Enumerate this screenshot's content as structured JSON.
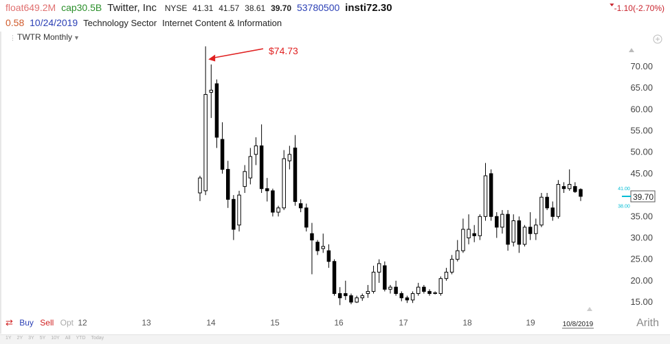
{
  "header": {
    "float": "float649.2M",
    "cap": "cap30.5B",
    "company": "Twitter, Inc",
    "exchange": "NYSE",
    "open": "41.31",
    "high": "41.57",
    "low": "38.61",
    "close": "39.70",
    "volume": "53780500",
    "insti": "insti72.30",
    "eps_value": "0.58",
    "date": "10/24/2019",
    "sector": "Technology Sector",
    "industry": "Internet Content & Information",
    "change": "-1.10(-2.70%)"
  },
  "ticker_label": "TWTR Monthly",
  "footer": {
    "buy_label": "Buy",
    "sell_label": "Sell",
    "opt_label": "Opt",
    "scale_mode": "Arith"
  },
  "scrollbar_labels": [
    "1Y",
    "2Y",
    "3Y",
    "5Y",
    "10Y",
    "All",
    "YTD",
    "Today"
  ],
  "colors": {
    "up_fill": "#ffffff",
    "down_fill": "#000000",
    "wick": "#000000",
    "annotation": "#e02020",
    "current_price_marker": "#00bcd4",
    "axis_text": "#444444"
  },
  "chart_data": {
    "type": "candlestick",
    "title": "",
    "xlabel": "",
    "ylabel": "",
    "ylim": [
      13,
      76
    ],
    "y_ticks": [
      15,
      20,
      25,
      30,
      35,
      40,
      45,
      50,
      55,
      60,
      65,
      70
    ],
    "y_tick_labels": [
      "15.00",
      "20.00",
      "25.00",
      "30.00",
      "35.00",
      "40.00",
      "45.00",
      "50.00",
      "55.00",
      "60.00",
      "65.00",
      "70.00"
    ],
    "x_tick_labels": [
      "12",
      "13",
      "14",
      "15",
      "16",
      "17",
      "18",
      "19"
    ],
    "last_date_label": "10/8/2019",
    "current_price_label": "39.70",
    "minor_label_high": "41.00",
    "minor_label_low": "38.00",
    "annotation": {
      "text": "$74.73",
      "value": 74.73
    },
    "candles": [
      {
        "o": 40.5,
        "h": 44.5,
        "l": 38.6,
        "c": 44.0
      },
      {
        "o": 41.0,
        "h": 74.73,
        "l": 40.0,
        "c": 63.5
      },
      {
        "o": 64.0,
        "h": 70.5,
        "l": 58.0,
        "c": 64.5
      },
      {
        "o": 66.0,
        "h": 67.0,
        "l": 51.0,
        "c": 53.5
      },
      {
        "o": 53.0,
        "h": 57.0,
        "l": 45.0,
        "c": 46.0
      },
      {
        "o": 46.0,
        "h": 48.0,
        "l": 37.0,
        "c": 39.0
      },
      {
        "o": 39.0,
        "h": 40.0,
        "l": 29.5,
        "c": 32.0
      },
      {
        "o": 33.0,
        "h": 41.0,
        "l": 31.5,
        "c": 40.0
      },
      {
        "o": 42.0,
        "h": 47.0,
        "l": 40.5,
        "c": 45.5
      },
      {
        "o": 44.0,
        "h": 51.0,
        "l": 42.5,
        "c": 49.0
      },
      {
        "o": 49.5,
        "h": 53.5,
        "l": 47.0,
        "c": 51.5
      },
      {
        "o": 51.5,
        "h": 56.5,
        "l": 40.5,
        "c": 41.5
      },
      {
        "o": 41.5,
        "h": 44.0,
        "l": 38.5,
        "c": 41.0
      },
      {
        "o": 41.0,
        "h": 41.5,
        "l": 35.0,
        "c": 36.0
      },
      {
        "o": 36.0,
        "h": 37.5,
        "l": 35.0,
        "c": 37.0
      },
      {
        "o": 37.0,
        "h": 50.5,
        "l": 36.5,
        "c": 48.5
      },
      {
        "o": 48.0,
        "h": 51.5,
        "l": 46.0,
        "c": 49.5
      },
      {
        "o": 51.0,
        "h": 54.0,
        "l": 37.5,
        "c": 38.5
      },
      {
        "o": 38.0,
        "h": 39.0,
        "l": 36.0,
        "c": 37.0
      },
      {
        "o": 37.0,
        "h": 38.0,
        "l": 31.5,
        "c": 32.5
      },
      {
        "o": 31.0,
        "h": 33.5,
        "l": 21.5,
        "c": 29.5
      },
      {
        "o": 29.0,
        "h": 29.5,
        "l": 26.0,
        "c": 27.0
      },
      {
        "o": 27.5,
        "h": 31.0,
        "l": 26.5,
        "c": 28.0
      },
      {
        "o": 27.0,
        "h": 28.5,
        "l": 23.0,
        "c": 24.5
      },
      {
        "o": 24.5,
        "h": 25.0,
        "l": 16.5,
        "c": 17.0
      },
      {
        "o": 17.0,
        "h": 18.5,
        "l": 14.3,
        "c": 16.0
      },
      {
        "o": 17.0,
        "h": 20.0,
        "l": 15.5,
        "c": 16.5
      },
      {
        "o": 16.5,
        "h": 17.0,
        "l": 14.5,
        "c": 15.0
      },
      {
        "o": 15.0,
        "h": 16.5,
        "l": 14.8,
        "c": 16.0
      },
      {
        "o": 16.0,
        "h": 17.0,
        "l": 15.3,
        "c": 16.5
      },
      {
        "o": 17.0,
        "h": 19.0,
        "l": 16.0,
        "c": 17.5
      },
      {
        "o": 17.5,
        "h": 23.5,
        "l": 17.0,
        "c": 22.0
      },
      {
        "o": 22.0,
        "h": 25.0,
        "l": 19.5,
        "c": 24.0
      },
      {
        "o": 23.5,
        "h": 24.5,
        "l": 17.5,
        "c": 18.0
      },
      {
        "o": 18.0,
        "h": 19.0,
        "l": 17.0,
        "c": 18.5
      },
      {
        "o": 18.5,
        "h": 20.0,
        "l": 16.5,
        "c": 17.0
      },
      {
        "o": 17.0,
        "h": 17.5,
        "l": 15.2,
        "c": 16.0
      },
      {
        "o": 16.0,
        "h": 16.5,
        "l": 14.8,
        "c": 15.5
      },
      {
        "o": 15.5,
        "h": 17.5,
        "l": 14.8,
        "c": 17.0
      },
      {
        "o": 17.0,
        "h": 19.5,
        "l": 16.5,
        "c": 18.5
      },
      {
        "o": 18.5,
        "h": 19.0,
        "l": 17.0,
        "c": 17.5
      },
      {
        "o": 17.5,
        "h": 18.0,
        "l": 16.5,
        "c": 17.0
      },
      {
        "o": 17.0,
        "h": 17.5,
        "l": 16.8,
        "c": 17.2
      },
      {
        "o": 17.0,
        "h": 21.0,
        "l": 16.5,
        "c": 20.5
      },
      {
        "o": 20.5,
        "h": 23.0,
        "l": 20.0,
        "c": 22.0
      },
      {
        "o": 22.0,
        "h": 26.0,
        "l": 21.5,
        "c": 25.0
      },
      {
        "o": 25.0,
        "h": 29.5,
        "l": 24.5,
        "c": 27.0
      },
      {
        "o": 27.0,
        "h": 34.5,
        "l": 26.5,
        "c": 32.0
      },
      {
        "o": 30.0,
        "h": 35.5,
        "l": 28.5,
        "c": 32.0
      },
      {
        "o": 31.0,
        "h": 33.0,
        "l": 29.0,
        "c": 30.5
      },
      {
        "o": 30.5,
        "h": 35.5,
        "l": 29.5,
        "c": 35.0
      },
      {
        "o": 35.0,
        "h": 47.5,
        "l": 34.0,
        "c": 44.5
      },
      {
        "o": 45.0,
        "h": 46.0,
        "l": 34.0,
        "c": 35.0
      },
      {
        "o": 35.0,
        "h": 36.0,
        "l": 30.0,
        "c": 32.5
      },
      {
        "o": 32.5,
        "h": 36.5,
        "l": 31.0,
        "c": 35.5
      },
      {
        "o": 35.5,
        "h": 36.5,
        "l": 27.0,
        "c": 28.5
      },
      {
        "o": 29.0,
        "h": 35.5,
        "l": 28.0,
        "c": 34.0
      },
      {
        "o": 34.0,
        "h": 35.0,
        "l": 26.5,
        "c": 28.5
      },
      {
        "o": 28.5,
        "h": 33.0,
        "l": 28.0,
        "c": 32.5
      },
      {
        "o": 32.5,
        "h": 36.0,
        "l": 29.5,
        "c": 31.0
      },
      {
        "o": 31.0,
        "h": 34.5,
        "l": 29.5,
        "c": 33.0
      },
      {
        "o": 33.0,
        "h": 40.5,
        "l": 32.5,
        "c": 39.5
      },
      {
        "o": 39.5,
        "h": 40.5,
        "l": 36.5,
        "c": 37.0
      },
      {
        "o": 37.0,
        "h": 38.5,
        "l": 34.0,
        "c": 35.0
      },
      {
        "o": 35.0,
        "h": 43.5,
        "l": 34.5,
        "c": 42.5
      },
      {
        "o": 42.0,
        "h": 43.0,
        "l": 40.5,
        "c": 41.5
      },
      {
        "o": 41.5,
        "h": 46.0,
        "l": 41.0,
        "c": 42.5
      },
      {
        "o": 42.0,
        "h": 43.0,
        "l": 40.5,
        "c": 40.8
      },
      {
        "o": 41.31,
        "h": 41.57,
        "l": 38.61,
        "c": 39.7
      }
    ]
  }
}
